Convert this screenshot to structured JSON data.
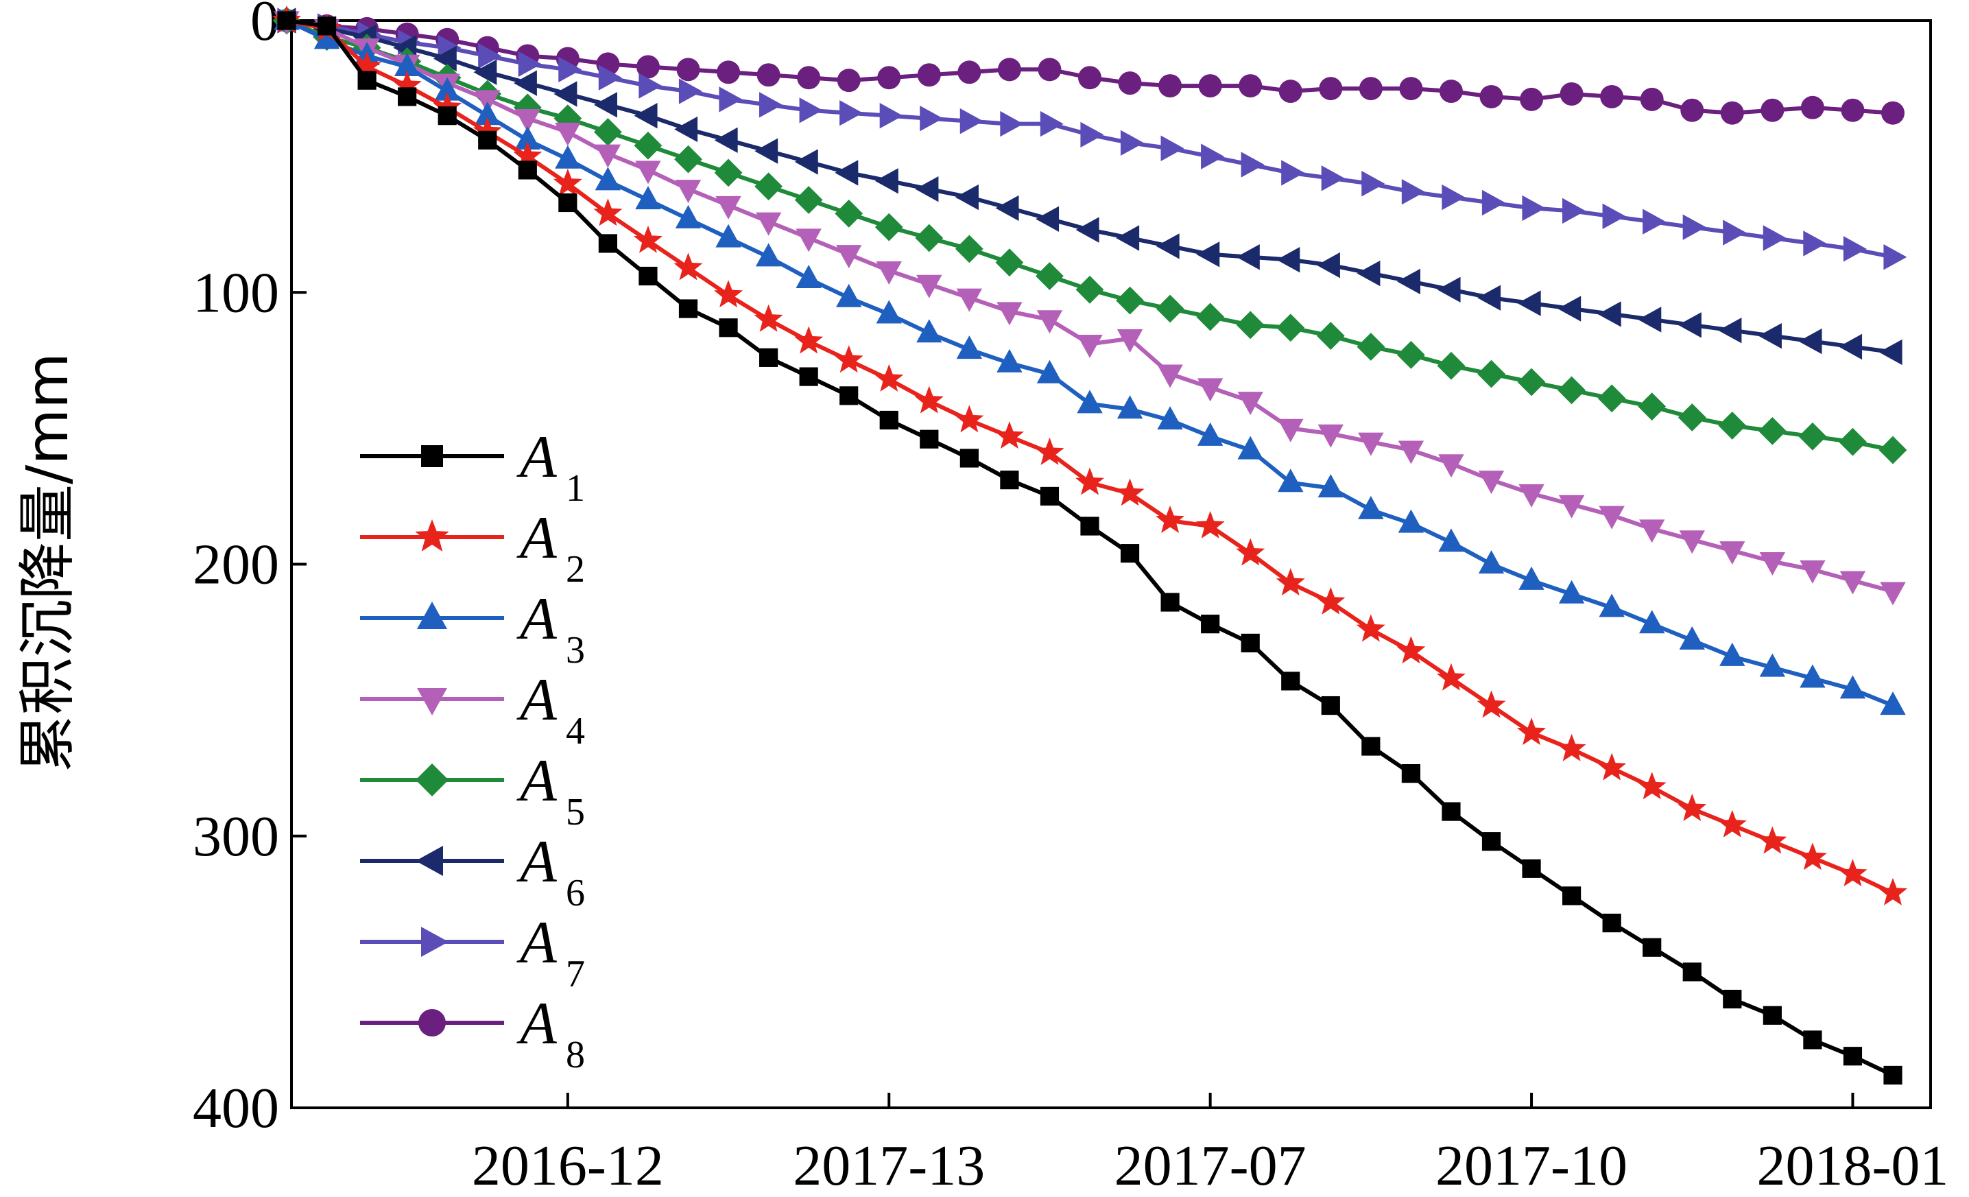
{
  "chart_data": {
    "type": "line",
    "ylabel": "累积沉降量/mm",
    "ylim": [
      0,
      400
    ],
    "y_inverted": true,
    "y_ticks": [
      0,
      100,
      200,
      300,
      400
    ],
    "x_tick_labels": [
      "2016-12",
      "2017-13",
      "2017-07",
      "2017-10",
      "2018-01"
    ],
    "x_tick_index": [
      7,
      15,
      23,
      31,
      39
    ],
    "x_count": 41,
    "legend_position": "bottom-left",
    "series": [
      {
        "name": "A",
        "sub": "1",
        "color": "#000000",
        "marker": "square",
        "values": [
          0,
          2,
          22,
          28,
          35,
          44,
          55,
          67,
          82,
          94,
          106,
          113,
          124,
          131,
          138,
          147,
          154,
          161,
          169,
          175,
          186,
          196,
          214,
          222,
          229,
          243,
          252,
          267,
          277,
          291,
          302,
          312,
          322,
          332,
          341,
          350,
          360,
          366,
          375,
          381,
          388
        ]
      },
      {
        "name": "A",
        "sub": "2",
        "color": "#e8231c",
        "marker": "star",
        "values": [
          0,
          3,
          17,
          24,
          32,
          41,
          50,
          60,
          71,
          81,
          91,
          101,
          110,
          118,
          125,
          132,
          140,
          147,
          153,
          159,
          170,
          174,
          184,
          186,
          196,
          207,
          214,
          224,
          232,
          242,
          252,
          262,
          268,
          275,
          282,
          290,
          296,
          302,
          308,
          314,
          321
        ]
      },
      {
        "name": "A",
        "sub": "3",
        "color": "#1f5fbf",
        "marker": "triangle-up",
        "values": [
          0,
          7,
          13,
          17,
          26,
          35,
          44,
          51,
          59,
          66,
          73,
          80,
          87,
          95,
          102,
          108,
          115,
          121,
          126,
          130,
          141,
          143,
          147,
          153,
          158,
          170,
          172,
          180,
          185,
          192,
          200,
          206,
          211,
          216,
          222,
          228,
          234,
          238,
          242,
          246,
          252
        ]
      },
      {
        "name": "A",
        "sub": "4",
        "color": "#b560b8",
        "marker": "triangle-down",
        "values": [
          0,
          3,
          10,
          16,
          23,
          29,
          36,
          41,
          49,
          55,
          62,
          68,
          74,
          80,
          86,
          92,
          97,
          102,
          107,
          110,
          119,
          117,
          130,
          135,
          140,
          150,
          152,
          155,
          158,
          163,
          169,
          174,
          178,
          182,
          187,
          191,
          195,
          199,
          202,
          206,
          210
        ]
      },
      {
        "name": "A",
        "sub": "5",
        "color": "#1e8a3a",
        "marker": "diamond",
        "values": [
          0,
          6,
          10,
          15,
          21,
          27,
          32,
          36,
          41,
          46,
          51,
          56,
          61,
          66,
          71,
          76,
          80,
          84,
          89,
          94,
          99,
          103,
          106,
          109,
          112,
          113,
          116,
          120,
          123,
          127,
          130,
          133,
          136,
          139,
          142,
          146,
          149,
          151,
          153,
          155,
          158
        ]
      },
      {
        "name": "A",
        "sub": "6",
        "color": "#1b2a6b",
        "marker": "triangle-left",
        "values": [
          0,
          3,
          6,
          10,
          14,
          19,
          23,
          27,
          31,
          35,
          40,
          44,
          48,
          52,
          56,
          59,
          62,
          65,
          69,
          73,
          77,
          80,
          83,
          86,
          87,
          88,
          90,
          93,
          96,
          99,
          102,
          104,
          106,
          108,
          110,
          112,
          114,
          116,
          118,
          120,
          122
        ]
      },
      {
        "name": "A",
        "sub": "7",
        "color": "#5b4db8",
        "marker": "triangle-right",
        "values": [
          0,
          2,
          5,
          8,
          10,
          13,
          16,
          18,
          21,
          24,
          26,
          29,
          31,
          33,
          34,
          35,
          36,
          37,
          38,
          38,
          42,
          45,
          47,
          50,
          53,
          56,
          58,
          60,
          63,
          65,
          67,
          69,
          70,
          72,
          74,
          76,
          78,
          80,
          82,
          84,
          87
        ]
      },
      {
        "name": "A",
        "sub": "8",
        "color": "#6b1f7e",
        "marker": "circle",
        "values": [
          0,
          2,
          3,
          5,
          7,
          10,
          13,
          14,
          16,
          17,
          18,
          19,
          20,
          21,
          22,
          21,
          20,
          19,
          18,
          18,
          21,
          23,
          24,
          24,
          24,
          26,
          25,
          25,
          25,
          26,
          28,
          29,
          27,
          28,
          29,
          33,
          34,
          33,
          32,
          33,
          34
        ]
      }
    ]
  }
}
